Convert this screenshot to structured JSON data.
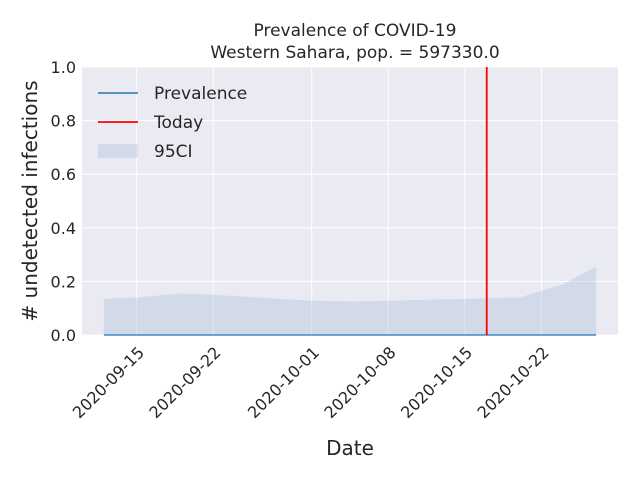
{
  "chart_data": {
    "type": "line",
    "title_line1": "Prevalence of COVID-19",
    "title_line2": "Western Sahara, pop. = 597330.0",
    "xlabel": "Date",
    "ylabel": "# undetected infections",
    "ylim": [
      0.0,
      1.0
    ],
    "xlim": [
      "2020-09-10",
      "2020-10-29"
    ],
    "yticks": [
      0.0,
      0.2,
      0.4,
      0.6,
      0.8,
      1.0
    ],
    "ytick_labels": [
      "0.0",
      "0.2",
      "0.4",
      "0.6",
      "0.8",
      "1.0"
    ],
    "xticks": [
      "2020-09-15",
      "2020-09-22",
      "2020-10-01",
      "2020-10-08",
      "2020-10-15",
      "2020-10-22"
    ],
    "grid": true,
    "legend_position": "top-left",
    "series": [
      {
        "name": "Prevalence",
        "color": "#1f77b4",
        "x": [
          "2020-09-12",
          "2020-09-19",
          "2020-09-26",
          "2020-10-03",
          "2020-10-10",
          "2020-10-17",
          "2020-10-24",
          "2020-10-27"
        ],
        "values": [
          0.0,
          0.0,
          0.0,
          0.0,
          0.0,
          0.0,
          0.0,
          0.0
        ]
      }
    ],
    "band": {
      "name": "95CI",
      "color": "#b0c4de",
      "x": [
        "2020-09-12",
        "2020-09-15",
        "2020-09-19",
        "2020-09-22",
        "2020-09-26",
        "2020-10-01",
        "2020-10-05",
        "2020-10-10",
        "2020-10-15",
        "2020-10-20",
        "2020-10-24",
        "2020-10-27"
      ],
      "lower": [
        0.0,
        0.0,
        0.0,
        0.0,
        0.0,
        0.0,
        0.0,
        0.0,
        0.0,
        0.0,
        0.0,
        0.0
      ],
      "upper": [
        0.135,
        0.14,
        0.155,
        0.15,
        0.14,
        0.128,
        0.125,
        0.13,
        0.135,
        0.14,
        0.19,
        0.255
      ]
    },
    "today": {
      "name": "Today",
      "date": "2020-10-17",
      "color": "#ff0000"
    }
  }
}
